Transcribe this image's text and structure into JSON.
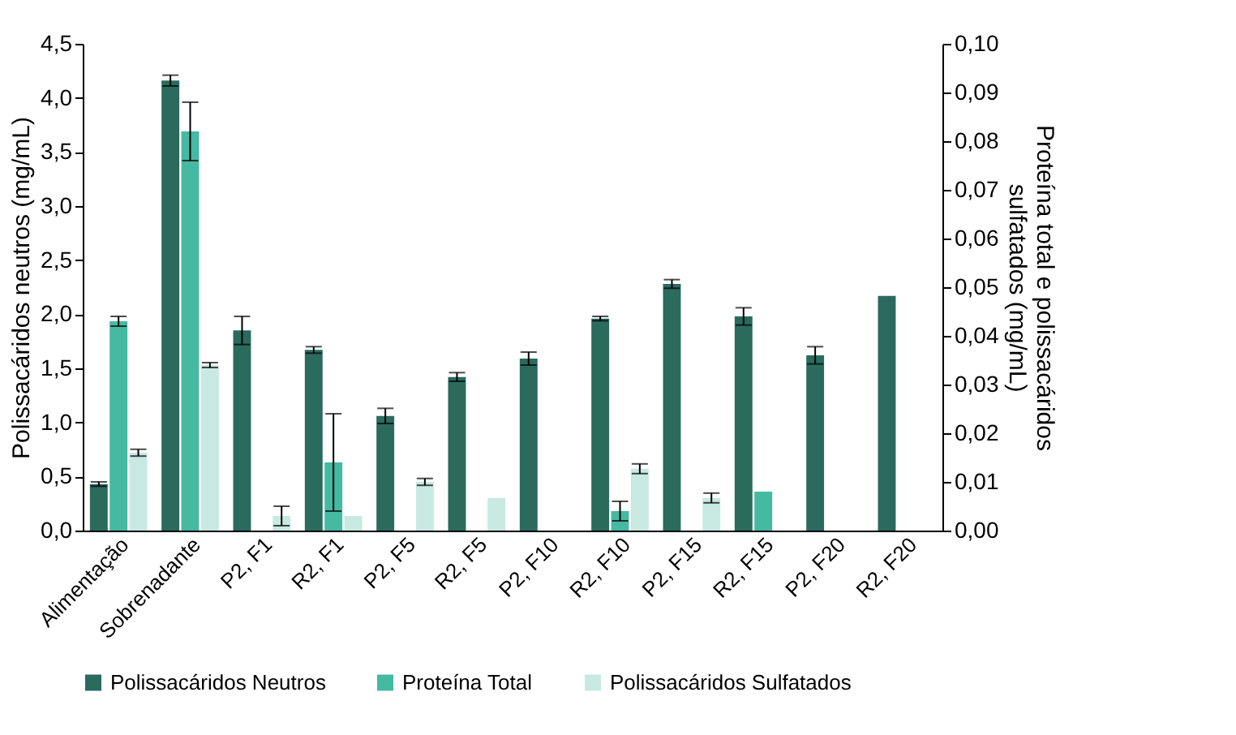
{
  "chart_data": {
    "type": "bar",
    "xlabel": null,
    "ylabel": "Polissacáridos neutros (mg/mL)",
    "y2label": "Proteína total e polissacáridos\nsulfatados (mg/mL)",
    "categories": [
      "Alimentação",
      "Sobrenadante",
      "P2, F1",
      "R2, F1",
      "P2, F5",
      "R2, F5",
      "P2, F10",
      "R2, F10",
      "P2, F15",
      "R2, F15",
      "P2, F20",
      "R2, F20"
    ],
    "series": [
      {
        "name": "Polissacáridos Neutros",
        "color": "#2a6b5e",
        "values": [
          0.43,
          4.16,
          1.85,
          1.67,
          1.06,
          1.42,
          1.59,
          1.96,
          2.28,
          1.98,
          1.62,
          2.17
        ],
        "errors": [
          0.02,
          0.05,
          0.13,
          0.03,
          0.07,
          0.04,
          0.06,
          0.02,
          0.04,
          0.08,
          0.08,
          null
        ]
      },
      {
        "name": "Proteína Total",
        "color": "#46b9a2",
        "axis": "y2",
        "values": [
          0.043,
          0.082,
          null,
          0.014,
          null,
          null,
          null,
          0.004,
          null,
          0.008,
          null,
          null
        ],
        "errors": [
          0.001,
          0.006,
          null,
          0.01,
          null,
          null,
          null,
          0.002,
          null,
          null,
          null,
          null
        ]
      },
      {
        "name": "Polissacáridos Sulfatados",
        "color": "#c7e9e1",
        "axis": "y2",
        "values": [
          0.016,
          0.034,
          0.003,
          0.003,
          0.01,
          0.0067,
          null,
          0.0127,
          0.0067,
          null,
          null,
          null
        ],
        "errors": [
          0.0007,
          0.0005,
          0.002,
          null,
          0.0007,
          null,
          null,
          0.001,
          0.001,
          null,
          null,
          null
        ]
      }
    ],
    "ylim": [
      0,
      4.5
    ],
    "yticks": [
      {
        "value": 0,
        "label": "0,0"
      },
      {
        "value": 0.5,
        "label": "0,5"
      },
      {
        "value": 1,
        "label": "1,0"
      },
      {
        "value": 1.5,
        "label": "1,5"
      },
      {
        "value": 2,
        "label": "2,0"
      },
      {
        "value": 2.5,
        "label": "2,5"
      },
      {
        "value": 3,
        "label": "3,0"
      },
      {
        "value": 3.5,
        "label": "3,5"
      },
      {
        "value": 4,
        "label": "4,0"
      },
      {
        "value": 4.5,
        "label": "4,5"
      }
    ],
    "y2lim": [
      0,
      0.1
    ],
    "y2ticks": [
      {
        "value": 0,
        "label": "0,00"
      },
      {
        "value": 0.01,
        "label": "0,01"
      },
      {
        "value": 0.02,
        "label": "0,02"
      },
      {
        "value": 0.03,
        "label": "0,03"
      },
      {
        "value": 0.04,
        "label": "0,04"
      },
      {
        "value": 0.05,
        "label": "0,05"
      },
      {
        "value": 0.06,
        "label": "0,06"
      },
      {
        "value": 0.07,
        "label": "0,07"
      },
      {
        "value": 0.08,
        "label": "0,08"
      },
      {
        "value": 0.09,
        "label": "0,09"
      },
      {
        "value": 0.1,
        "label": "0,10"
      }
    ],
    "legend": "bottom"
  }
}
